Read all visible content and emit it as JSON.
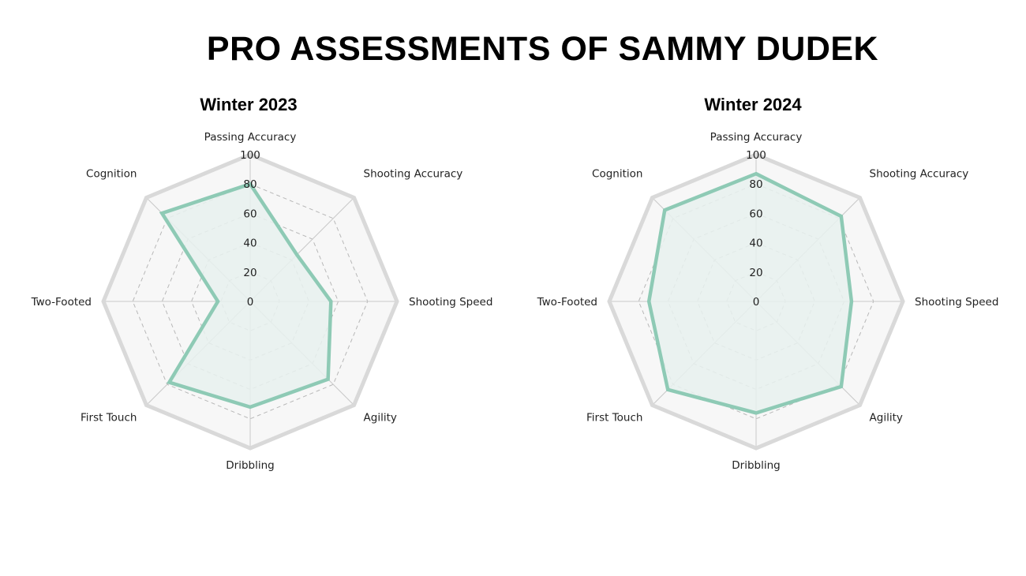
{
  "title": "PRO ASSESSMENTS OF SAMMY DUDEK",
  "colors": {
    "series_stroke": "#8ecab5",
    "series_fill": "#e8f1ef",
    "outer_ring": "#d9d9d9",
    "grid_dashed": "#b8b8b8",
    "spokes": "#c8c8c8",
    "background_fill": "#f7f7f7"
  },
  "chart_data": [
    {
      "type": "radar",
      "title": "Winter 2023",
      "axes": [
        "Passing Accuracy",
        "Shooting Accuracy",
        "Shooting Speed",
        "Agility",
        "Dribbling",
        "First Touch",
        "Two-Footed",
        "Cognition"
      ],
      "ticks": [
        "0",
        "20",
        "40",
        "60",
        "80",
        "100"
      ],
      "range": [
        0,
        100
      ],
      "values": [
        80,
        45,
        55,
        75,
        72,
        78,
        22,
        85
      ],
      "center": [
        317,
        382
      ],
      "radius": 186
    },
    {
      "type": "radar",
      "title": "Winter 2024",
      "axes": [
        "Passing Accuracy",
        "Shooting Accuracy",
        "Shooting Speed",
        "Agility",
        "Dribbling",
        "First Touch",
        "Two-Footed",
        "Cognition"
      ],
      "ticks": [
        "0",
        "20",
        "40",
        "60",
        "80",
        "100"
      ],
      "range": [
        0,
        100
      ],
      "values": [
        87,
        82,
        65,
        82,
        76,
        85,
        73,
        88
      ],
      "center": [
        958,
        382
      ],
      "radius": 186
    }
  ]
}
